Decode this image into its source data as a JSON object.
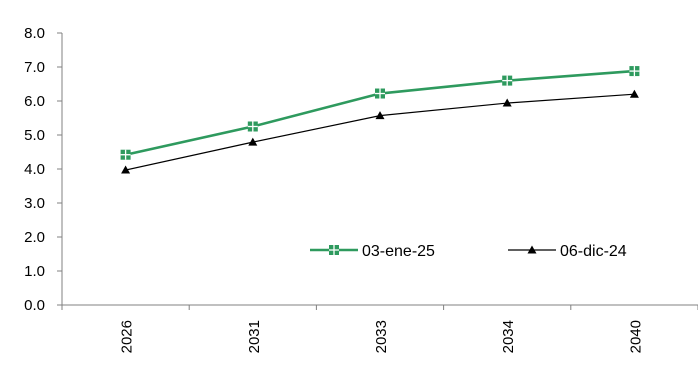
{
  "chart_data": {
    "type": "line",
    "categories": [
      "2026",
      "2031",
      "2033",
      "2034",
      "2040"
    ],
    "series": [
      {
        "name": "03-ene-25",
        "values": [
          4.42,
          5.25,
          6.22,
          6.6,
          6.88
        ],
        "color": "#2e9a5e",
        "marker": "square-cross"
      },
      {
        "name": "06-dic-24",
        "values": [
          3.97,
          4.79,
          5.57,
          5.94,
          6.2
        ],
        "color": "#000000",
        "marker": "triangle"
      }
    ],
    "ylim": [
      0,
      8
    ],
    "yticks": [
      "0.0",
      "1.0",
      "2.0",
      "3.0",
      "4.0",
      "5.0",
      "6.0",
      "7.0",
      "8.0"
    ],
    "grid": false,
    "legend_position": "bottom-right",
    "xlabel": "",
    "ylabel": "",
    "title": ""
  }
}
